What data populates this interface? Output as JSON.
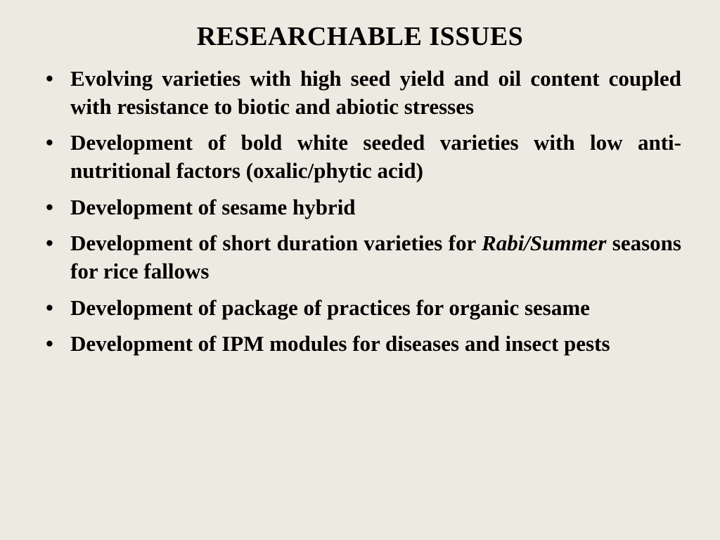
{
  "slide": {
    "title": "RESEARCHABLE ISSUES",
    "background_color": "#edeae1",
    "text_color": "#000000",
    "title_fontsize": 38,
    "body_fontsize": 31,
    "font_family": "Times New Roman",
    "bullets": [
      {
        "text": "Evolving varieties with high seed yield and oil content coupled with resistance to biotic and abiotic stresses",
        "html": "Evolving varieties with high seed yield and oil content coupled with resistance to biotic and abiotic stresses"
      },
      {
        "text": "Development of bold white seeded varieties with low anti-nutritional factors (oxalic/phytic acid)",
        "html": "Development of bold white seeded varieties with low anti-nutritional factors (oxalic/phytic acid)"
      },
      {
        "text": "Development of sesame hybrid",
        "html": "Development of sesame hybrid"
      },
      {
        "text": "Development of short duration varieties for Rabi/Summer seasons for rice fallows",
        "html": "Development of short duration varieties for <span class=\"italic\">Rabi/Summer</span> seasons for rice fallows"
      },
      {
        "text": "Development of package of practices for organic sesame",
        "html": "Development of package of practices for organic sesame"
      },
      {
        "text": "Development of IPM modules for diseases and insect pests",
        "html": "Development of IPM modules for diseases and insect pests"
      }
    ]
  }
}
